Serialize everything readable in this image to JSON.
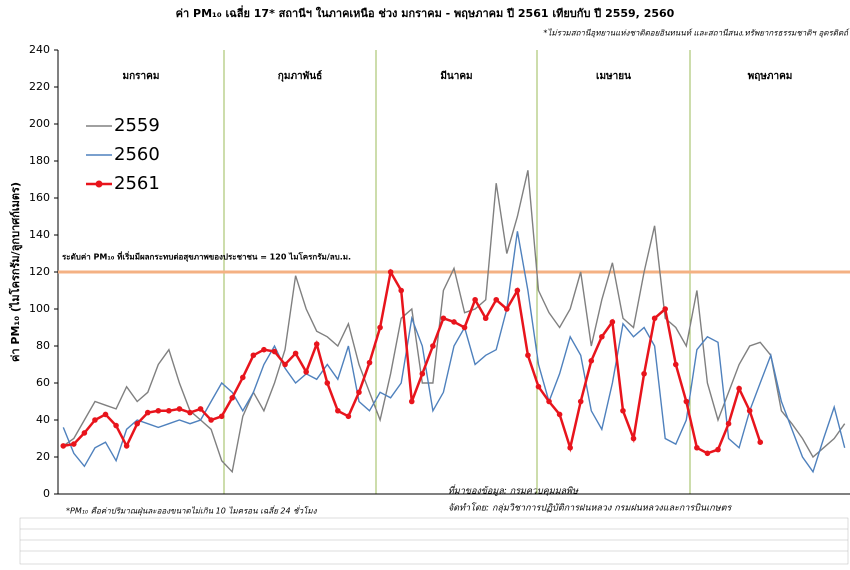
{
  "chart_data": {
    "type": "line",
    "title": "ค่า PM₁₀ เฉลี่ย 17* สถานีฯ ในภาคเหนือ ช่วง มกราคม - พฤษภาคม ปี 2561 เทียบกับ ปี 2559, 2560",
    "subtitle": "*ไม่รวมสถานีอุทยานแห่งชาติดอยอินทนนท์ และสถานีสนง.ทรัพยากรธรรมชาติฯ อุตรดิตถ์",
    "y_label": "ค่า PM₁₀ (ไมโครกรัม/ลูกบาศก์เมตร)",
    "month_labels": [
      "มกราคม",
      "กุมภาพันธ์",
      "มีนาคม",
      "เมษายน",
      "พฤษภาคม"
    ],
    "ylim": [
      0,
      240
    ],
    "yticks": [
      0,
      20,
      40,
      60,
      80,
      100,
      120,
      140,
      160,
      180,
      200,
      220,
      240
    ],
    "grid": false,
    "legend": "upper left",
    "reference_line": {
      "value": 120,
      "color": "#f4b183",
      "label": "ระดับค่า PM₁₀ ที่เริ่มมีผลกระทบต่อสุขภาพของประชาชน = 120 ไมโครกรัม/ลบ.ม."
    },
    "annotations": [
      "*PM₁₀ คือค่าปริมาณฝุ่นละอองขนาดไม่เกิน 10 ไมครอน เฉลี่ย 24 ชั่วโมง",
      "ที่มาของข้อมูล: กรมควบคุมมลพิษ",
      "จัดทำโดย: กลุ่มวิชาการปฏิบัติการฝนหลวง กรมฝนหลวงและการบินเกษตร"
    ],
    "series": [
      {
        "name": "2559",
        "color": "#808080",
        "markers": false,
        "values": [
          26,
          30,
          40,
          50,
          48,
          46,
          58,
          50,
          55,
          70,
          78,
          60,
          45,
          40,
          35,
          18,
          12,
          42,
          55,
          45,
          60,
          78,
          118,
          100,
          88,
          85,
          80,
          92,
          70,
          55,
          40,
          65,
          95,
          100,
          60,
          60,
          110,
          122,
          98,
          100,
          105,
          168,
          130,
          150,
          175,
          110,
          98,
          90,
          100,
          120,
          80,
          105,
          125,
          95,
          90,
          120,
          145,
          95,
          90,
          80,
          110,
          60,
          40,
          55,
          70,
          80,
          82,
          75,
          45,
          38,
          30,
          20,
          25,
          30,
          38
        ]
      },
      {
        "name": "2560",
        "color": "#4f81bd",
        "markers": false,
        "values": [
          36,
          22,
          15,
          25,
          28,
          18,
          35,
          40,
          38,
          36,
          38,
          40,
          38,
          40,
          50,
          60,
          55,
          45,
          55,
          70,
          80,
          68,
          60,
          65,
          62,
          70,
          62,
          80,
          50,
          45,
          55,
          52,
          60,
          95,
          80,
          45,
          55,
          80,
          90,
          70,
          75,
          78,
          100,
          142,
          110,
          70,
          50,
          65,
          85,
          75,
          45,
          35,
          60,
          92,
          85,
          90,
          80,
          30,
          27,
          40,
          78,
          85,
          82,
          30,
          25,
          45,
          60,
          75,
          50,
          35,
          20,
          12,
          30,
          47,
          25
        ]
      },
      {
        "name": "2561",
        "color": "#e8141c",
        "markers": true,
        "values": [
          26,
          27,
          33,
          40,
          43,
          37,
          26,
          38,
          44,
          45,
          45,
          46,
          44,
          46,
          40,
          42,
          52,
          63,
          75,
          78,
          77,
          70,
          76,
          66,
          81,
          60,
          45,
          42,
          55,
          71,
          90,
          120,
          110,
          50,
          65,
          80,
          95,
          93,
          90,
          105,
          95,
          105,
          100,
          110,
          75,
          58,
          50,
          43,
          25,
          50,
          72,
          85,
          93,
          45,
          30,
          65,
          95,
          100,
          70,
          50,
          25,
          22,
          24,
          38,
          57,
          45,
          28,
          null,
          null,
          null,
          null,
          null,
          null,
          null,
          null
        ]
      }
    ]
  }
}
